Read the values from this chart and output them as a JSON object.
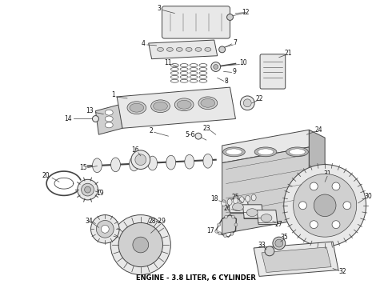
{
  "title": "ENGINE - 3.8 LITER, 6 CYLINDER",
  "title_fontsize": 6,
  "title_color": "#000000",
  "bg_color": "#ffffff",
  "fig_width": 4.9,
  "fig_height": 3.6,
  "dpi": 100,
  "caption": "ENGINE - 3.8 LITER, 6 CYLINDER",
  "line_color": "#444444",
  "fill_light": "#e8e8e8",
  "fill_mid": "#d0d0d0",
  "fill_dark": "#b8b8b8"
}
